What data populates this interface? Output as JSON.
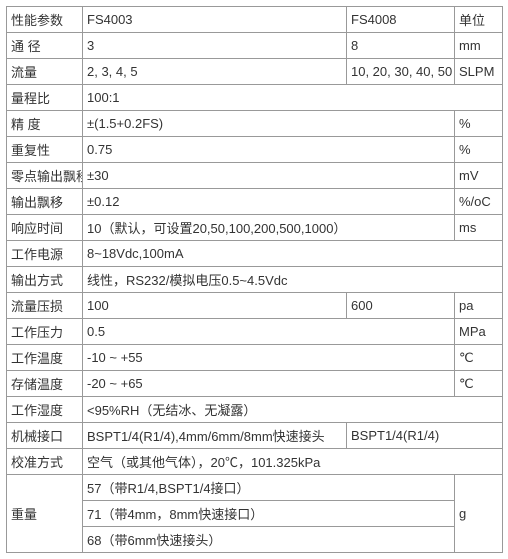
{
  "table": {
    "header": {
      "param": "性能参数",
      "model1": "FS4003",
      "model2": "FS4008",
      "unit": "单位"
    },
    "rows": {
      "diameter": {
        "label": "通 径",
        "v1": "3",
        "v2": "8",
        "unit": "mm"
      },
      "flow": {
        "label": "流量",
        "v1": "2, 3, 4, 5",
        "v2": "10, 20, 30, 40, 50",
        "unit": "SLPM"
      },
      "range": {
        "label": "量程比",
        "v1": "100:1"
      },
      "accuracy": {
        "label": "精 度",
        "v1": "±(1.5+0.2FS)",
        "unit": "%"
      },
      "repeat": {
        "label": "重复性",
        "v1": "0.75",
        "unit": "%"
      },
      "zero": {
        "label": "零点输出飘移",
        "v1": "±30",
        "unit": "mV"
      },
      "output": {
        "label": "输出飘移",
        "v1": "±0.12",
        "unit": "%/oC"
      },
      "response": {
        "label": "响应时间",
        "v1": "10（默认，可设置20,50,100,200,500,1000）",
        "unit": "ms"
      },
      "power": {
        "label": "工作电源",
        "v1": "8~18Vdc,100mA"
      },
      "outmode": {
        "label": "输出方式",
        "v1": "线性，RS232/模拟电压0.5~4.5Vdc"
      },
      "ploss": {
        "label": "流量压损",
        "v1": "100",
        "v2": "600",
        "unit": "pa"
      },
      "wpress": {
        "label": "工作压力",
        "v1": "0.5",
        "unit": "MPa"
      },
      "wtemp": {
        "label": "工作温度",
        "v1": "-10 ~ +55",
        "unit": "℃"
      },
      "stemp": {
        "label": "存储温度",
        "v1": "-20 ~ +65",
        "unit": "℃"
      },
      "humidity": {
        "label": "工作湿度",
        "v1": "<95%RH（无结冰、无凝露）"
      },
      "mech": {
        "label": "机械接口",
        "v1": "BSPT1/4(R1/4),4mm/6mm/8mm快速接头",
        "v2": "BSPT1/4(R1/4)"
      },
      "calib": {
        "label": "校准方式",
        "v1": "空气（或其他气体），20℃，101.325kPa"
      },
      "weight": {
        "label": "重量",
        "v1": "57（带R1/4,BSPT1/4接口）",
        "v2": "71（带4mm，8mm快速接口）",
        "v3": "68（带6mm快速接头）",
        "unit": "g"
      }
    }
  }
}
